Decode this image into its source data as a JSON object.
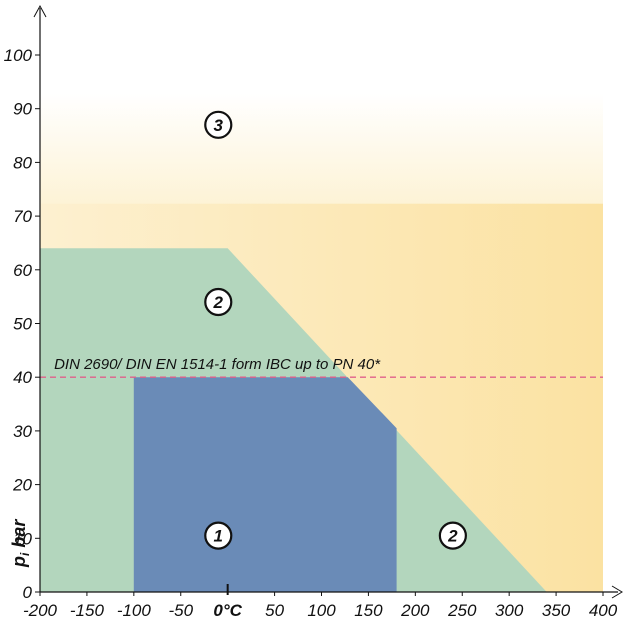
{
  "chart_data": {
    "type": "area",
    "title": "",
    "xlabel": "",
    "ylabel": "p_i bar",
    "ylabel_main": "p",
    "ylabel_sub": "i",
    "ylabel_unit": "bar",
    "xlim": [
      -200,
      400
    ],
    "ylim": [
      0,
      100
    ],
    "x_ticks": [
      -200,
      -150,
      -100,
      -50,
      0,
      50,
      100,
      150,
      200,
      250,
      300,
      350,
      400
    ],
    "x_tick_labels": [
      "-200",
      "-150",
      "-100",
      "-50",
      "0°C",
      "50",
      "100",
      "150",
      "200",
      "250",
      "300",
      "350",
      "400"
    ],
    "y_ticks": [
      0,
      10,
      20,
      30,
      40,
      50,
      60,
      70,
      80,
      90,
      100
    ],
    "y_tick_labels": [
      "0",
      "10",
      "20",
      "30",
      "40",
      "50",
      "60",
      "70",
      "80",
      "90",
      "100"
    ],
    "grid": false,
    "regions": [
      {
        "label": "3",
        "color": "#fbe4a8",
        "polygon": [
          [
            -200,
            0
          ],
          [
            400,
            0
          ],
          [
            400,
            90
          ],
          [
            -200,
            90
          ]
        ],
        "label_positions": [
          [
            -10,
            87
          ]
        ]
      },
      {
        "label": "2",
        "color": "#b3d6bd",
        "polygon": [
          [
            -200,
            0
          ],
          [
            340,
            0
          ],
          [
            0,
            64
          ],
          [
            -200,
            64
          ]
        ],
        "label_positions": [
          [
            -10,
            54
          ],
          [
            240,
            10.5
          ]
        ]
      },
      {
        "label": "1",
        "color": "#6a8bb7",
        "polygon": [
          [
            -100,
            0
          ],
          [
            180,
            0
          ],
          [
            180,
            30.5
          ],
          [
            128,
            40
          ],
          [
            -100,
            40
          ]
        ],
        "label_positions": [
          [
            -10,
            10.5
          ]
        ]
      }
    ],
    "reference_lines": [
      {
        "y": 40,
        "style": "dashed",
        "color": "#e0608a",
        "label": "DIN 2690/ DIN EN 1514-1 form IBC up to PN 40*"
      }
    ]
  }
}
